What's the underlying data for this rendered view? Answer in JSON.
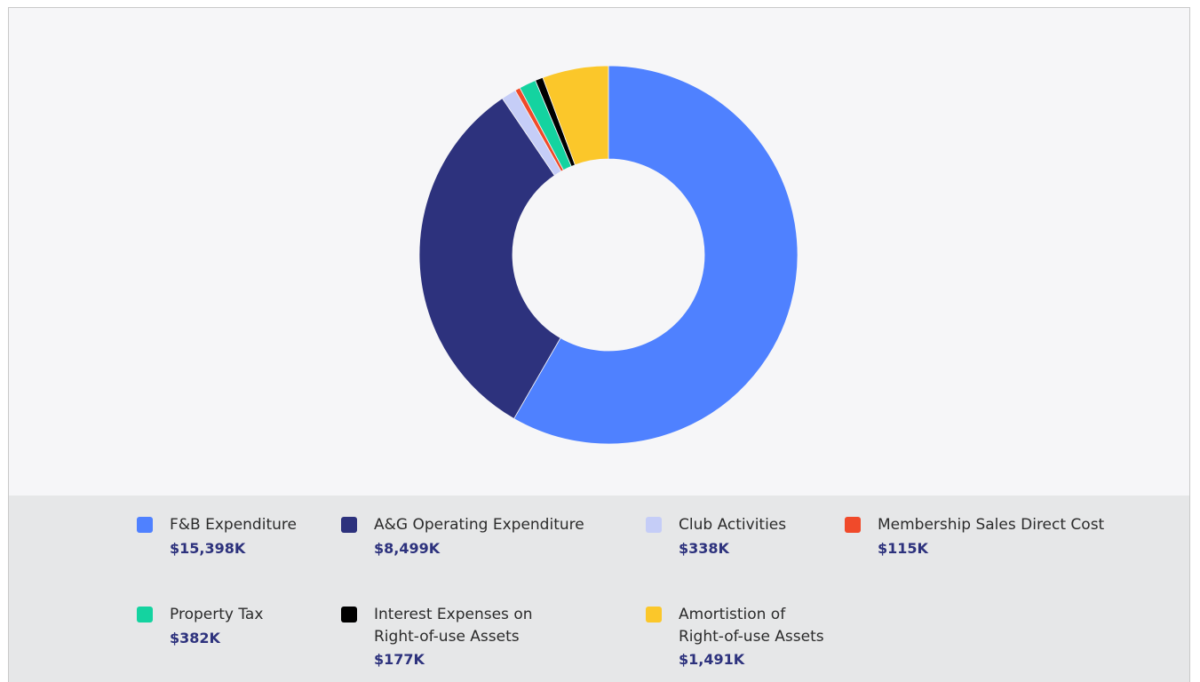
{
  "chart_data": {
    "type": "donut",
    "categories": [
      "F&B Expenditure",
      "A&G Operating Expenditure",
      "Club Activities",
      "Membership Sales Direct Cost",
      "Property Tax",
      "Interest Expenses on\nRight-of-use Assets",
      "Amortistion of\nRight-of-use Assets"
    ],
    "values": [
      15398,
      8499,
      338,
      115,
      382,
      177,
      1491
    ],
    "value_labels": [
      "$15,398K",
      "$8,499K",
      "$338K",
      "$115K",
      "$382K",
      "$177K",
      "$1,491K"
    ],
    "colors": [
      "#4f81ff",
      "#2d327d",
      "#c5cdf7",
      "#f04a2a",
      "#14d3a0",
      "#000000",
      "#fbc72a"
    ],
    "legend": "bottom"
  }
}
